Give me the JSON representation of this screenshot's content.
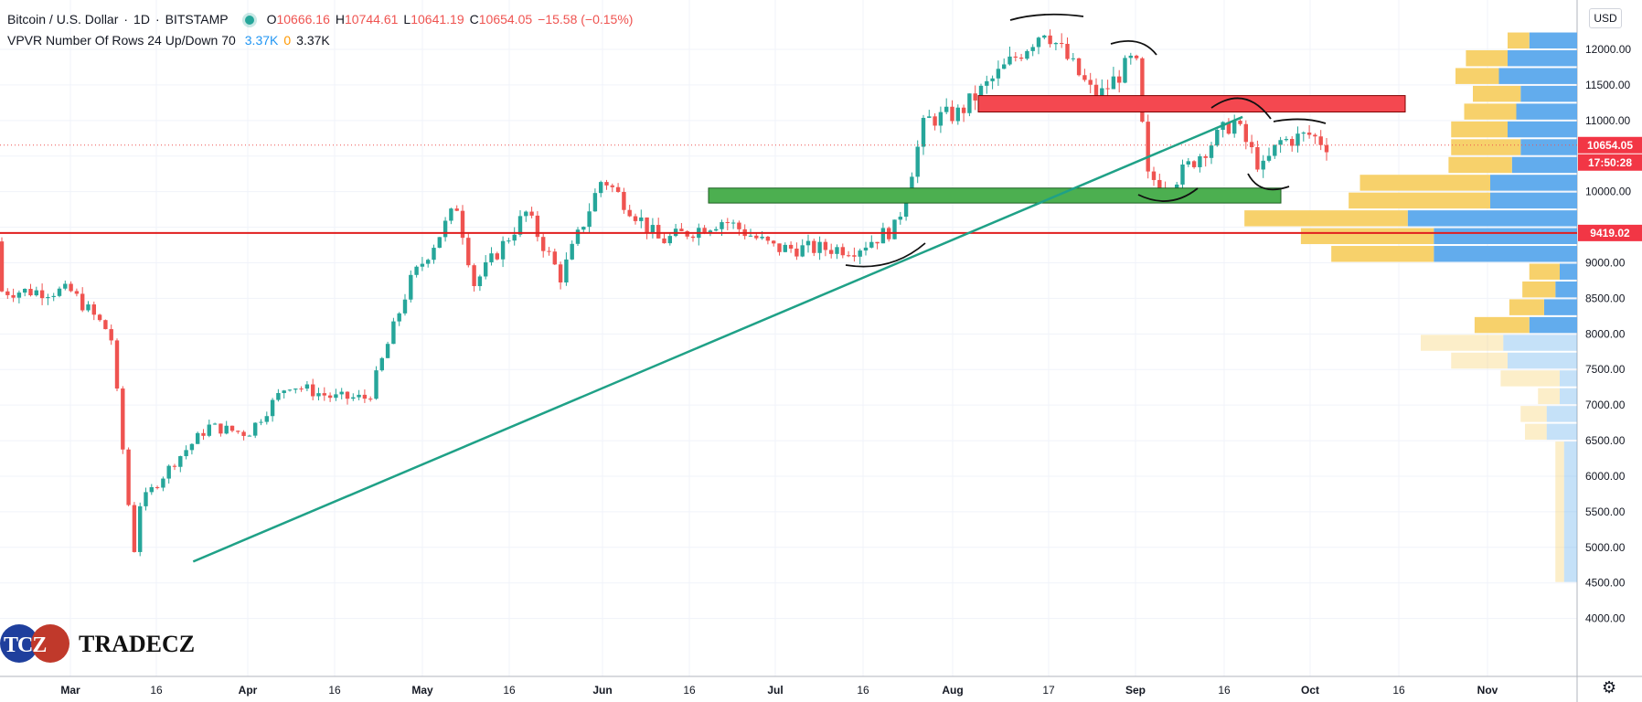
{
  "legend": {
    "symbol": "Bitcoin / U.S. Dollar",
    "interval": "1D",
    "exchange": "BITSTAMP",
    "open_label": "O",
    "open": "10666.16",
    "high_label": "H",
    "high": "10744.61",
    "low_label": "L",
    "low": "10641.19",
    "close_label": "C",
    "close": "10654.05",
    "change": "−15.58 (−0.15%)",
    "indicator": "VPVR Number Of Rows 24 Up/Down 70",
    "ind_v1": "3.37K",
    "ind_v2": "0",
    "ind_v3": "3.37K",
    "dot_color": "#26a69a"
  },
  "currency_button": "USD",
  "price_badges": {
    "last_price": "10654.05",
    "countdown": "17:50:28",
    "line_price": "9419.02",
    "badge_color": "#f23645"
  },
  "axis": {
    "price_labels": [
      "12000.00",
      "11500.00",
      "11000.00",
      "10000.00",
      "9000.00",
      "8500.00",
      "8000.00",
      "7500.00",
      "7000.00",
      "6500.00",
      "6000.00",
      "5500.00",
      "5000.00",
      "4500.00",
      "4000.00"
    ],
    "time_labels": [
      "Mar",
      "16",
      "Apr",
      "16",
      "May",
      "16",
      "Jun",
      "16",
      "Jul",
      "16",
      "Aug",
      "17",
      "Sep",
      "16",
      "Oct",
      "16",
      "Nov"
    ]
  },
  "logo": {
    "mark": "TCZ",
    "brand": "TRADECZ"
  },
  "settings_icon": "gear-icon",
  "colors": {
    "up": "#26a69a",
    "down": "#ef5350",
    "vp_up": "#5aa8ec",
    "vp_down": "#f7cf63",
    "trendline": "#1fa187",
    "support_zone": "#4caf50",
    "resistance_zone": "#f44850"
  },
  "chart_data": {
    "type": "candlestick",
    "symbol": "Bitcoin / U.S. Dollar",
    "interval": "1D",
    "ylim": [
      3900,
      12300
    ],
    "x_ticks": [
      "Mar",
      "16",
      "Apr",
      "16",
      "May",
      "16",
      "Jun",
      "16",
      "Jul",
      "16",
      "Aug",
      "17",
      "Sep",
      "16",
      "Oct",
      "16",
      "Nov"
    ],
    "y_ticks": [
      4000,
      4500,
      5000,
      5500,
      6000,
      6500,
      7000,
      7500,
      8000,
      8500,
      9000,
      9500,
      10000,
      10500,
      11000,
      11500,
      12000
    ],
    "price_path": [
      {
        "date": "Feb 26",
        "close": 9300
      },
      {
        "date": "Mar 1",
        "close": 8600
      },
      {
        "date": "Mar 8",
        "close": 8000
      },
      {
        "date": "Mar 12",
        "close": 4900
      },
      {
        "date": "Mar 13",
        "close": 5600
      },
      {
        "date": "Mar 19",
        "close": 6200
      },
      {
        "date": "Mar 25",
        "close": 6700
      },
      {
        "date": "Apr 1",
        "close": 6600
      },
      {
        "date": "Apr 8",
        "close": 7300
      },
      {
        "date": "Apr 16",
        "close": 7100
      },
      {
        "date": "Apr 22",
        "close": 7100
      },
      {
        "date": "Apr 29",
        "close": 8700
      },
      {
        "date": "May 7",
        "close": 9800
      },
      {
        "date": "May 10",
        "close": 8700
      },
      {
        "date": "May 19",
        "close": 9700
      },
      {
        "date": "May 25",
        "close": 8800
      },
      {
        "date": "Jun 1",
        "close": 10200
      },
      {
        "date": "Jun 11",
        "close": 9300
      },
      {
        "date": "Jun 22",
        "close": 9600
      },
      {
        "date": "Jul 1",
        "close": 9200
      },
      {
        "date": "Jul 15",
        "close": 9200
      },
      {
        "date": "Jul 22",
        "close": 9500
      },
      {
        "date": "Jul 27",
        "close": 11000
      },
      {
        "date": "Aug 2",
        "close": 11100
      },
      {
        "date": "Aug 17",
        "close": 12300
      },
      {
        "date": "Aug 26",
        "close": 11300
      },
      {
        "date": "Sep 1",
        "close": 11900
      },
      {
        "date": "Sep 3",
        "close": 10200
      },
      {
        "date": "Sep 7",
        "close": 10100
      },
      {
        "date": "Sep 18",
        "close": 11000
      },
      {
        "date": "Sep 23",
        "close": 10300
      },
      {
        "date": "Sep 26",
        "close": 10700
      },
      {
        "date": "Oct 1",
        "close": 10800
      },
      {
        "date": "Oct 4",
        "close": 10654.05
      }
    ],
    "volume_profile": [
      {
        "from": 12000,
        "to": 12250,
        "up": 0.25,
        "down": 0.55
      },
      {
        "from": 11750,
        "to": 12000,
        "up": 0.48,
        "down": 0.8
      },
      {
        "from": 11500,
        "to": 11750,
        "up": 0.5,
        "down": 0.9
      },
      {
        "from": 11250,
        "to": 11500,
        "up": 0.55,
        "down": 0.65
      },
      {
        "from": 11000,
        "to": 11250,
        "up": 0.6,
        "down": 0.7
      },
      {
        "from": 10750,
        "to": 11000,
        "up": 0.65,
        "down": 0.8
      },
      {
        "from": 10500,
        "to": 10750,
        "up": 0.8,
        "down": 0.65
      },
      {
        "from": 10250,
        "to": 10500,
        "up": 0.73,
        "down": 0.75
      },
      {
        "from": 10000,
        "to": 10250,
        "up": 1.5,
        "down": 1.0
      },
      {
        "from": 9750,
        "to": 10000,
        "up": 1.63,
        "down": 1.0
      },
      {
        "from": 9500,
        "to": 9750,
        "up": 1.88,
        "down": 1.95
      },
      {
        "from": 9250,
        "to": 9500,
        "up": 1.53,
        "down": 1.65
      },
      {
        "from": 9000,
        "to": 9250,
        "up": 1.18,
        "down": 1.65
      },
      {
        "from": 8750,
        "to": 9000,
        "up": 0.35,
        "down": 0.2
      },
      {
        "from": 8500,
        "to": 8750,
        "up": 0.38,
        "down": 0.25
      },
      {
        "from": 8250,
        "to": 8500,
        "up": 0.4,
        "down": 0.38
      },
      {
        "from": 8000,
        "to": 8250,
        "up": 0.63,
        "down": 0.55
      },
      {
        "from": 7750,
        "to": 8000,
        "up": 0.95,
        "down": 0.85
      },
      {
        "from": 7500,
        "to": 7750,
        "up": 0.65,
        "down": 0.8
      },
      {
        "from": 7250,
        "to": 7500,
        "up": 0.68,
        "down": 0.2
      },
      {
        "from": 7000,
        "to": 7250,
        "up": 0.25,
        "down": 0.2
      },
      {
        "from": 6750,
        "to": 7000,
        "up": 0.3,
        "down": 0.35
      },
      {
        "from": 6500,
        "to": 6750,
        "up": 0.25,
        "down": 0.35
      },
      {
        "from": 4500,
        "to": 6500,
        "up": 0.1,
        "down": 0.15
      }
    ],
    "horizontal_line": 9419.02,
    "last_close": 10654.05,
    "support_zone": {
      "from": 9840,
      "to": 10050
    },
    "resistance_zone": {
      "from": 11120,
      "to": 11350
    },
    "trendline": [
      {
        "date": "Mar 12",
        "price": 4800
      },
      {
        "date": "Sep 18",
        "price": 11050
      }
    ]
  }
}
